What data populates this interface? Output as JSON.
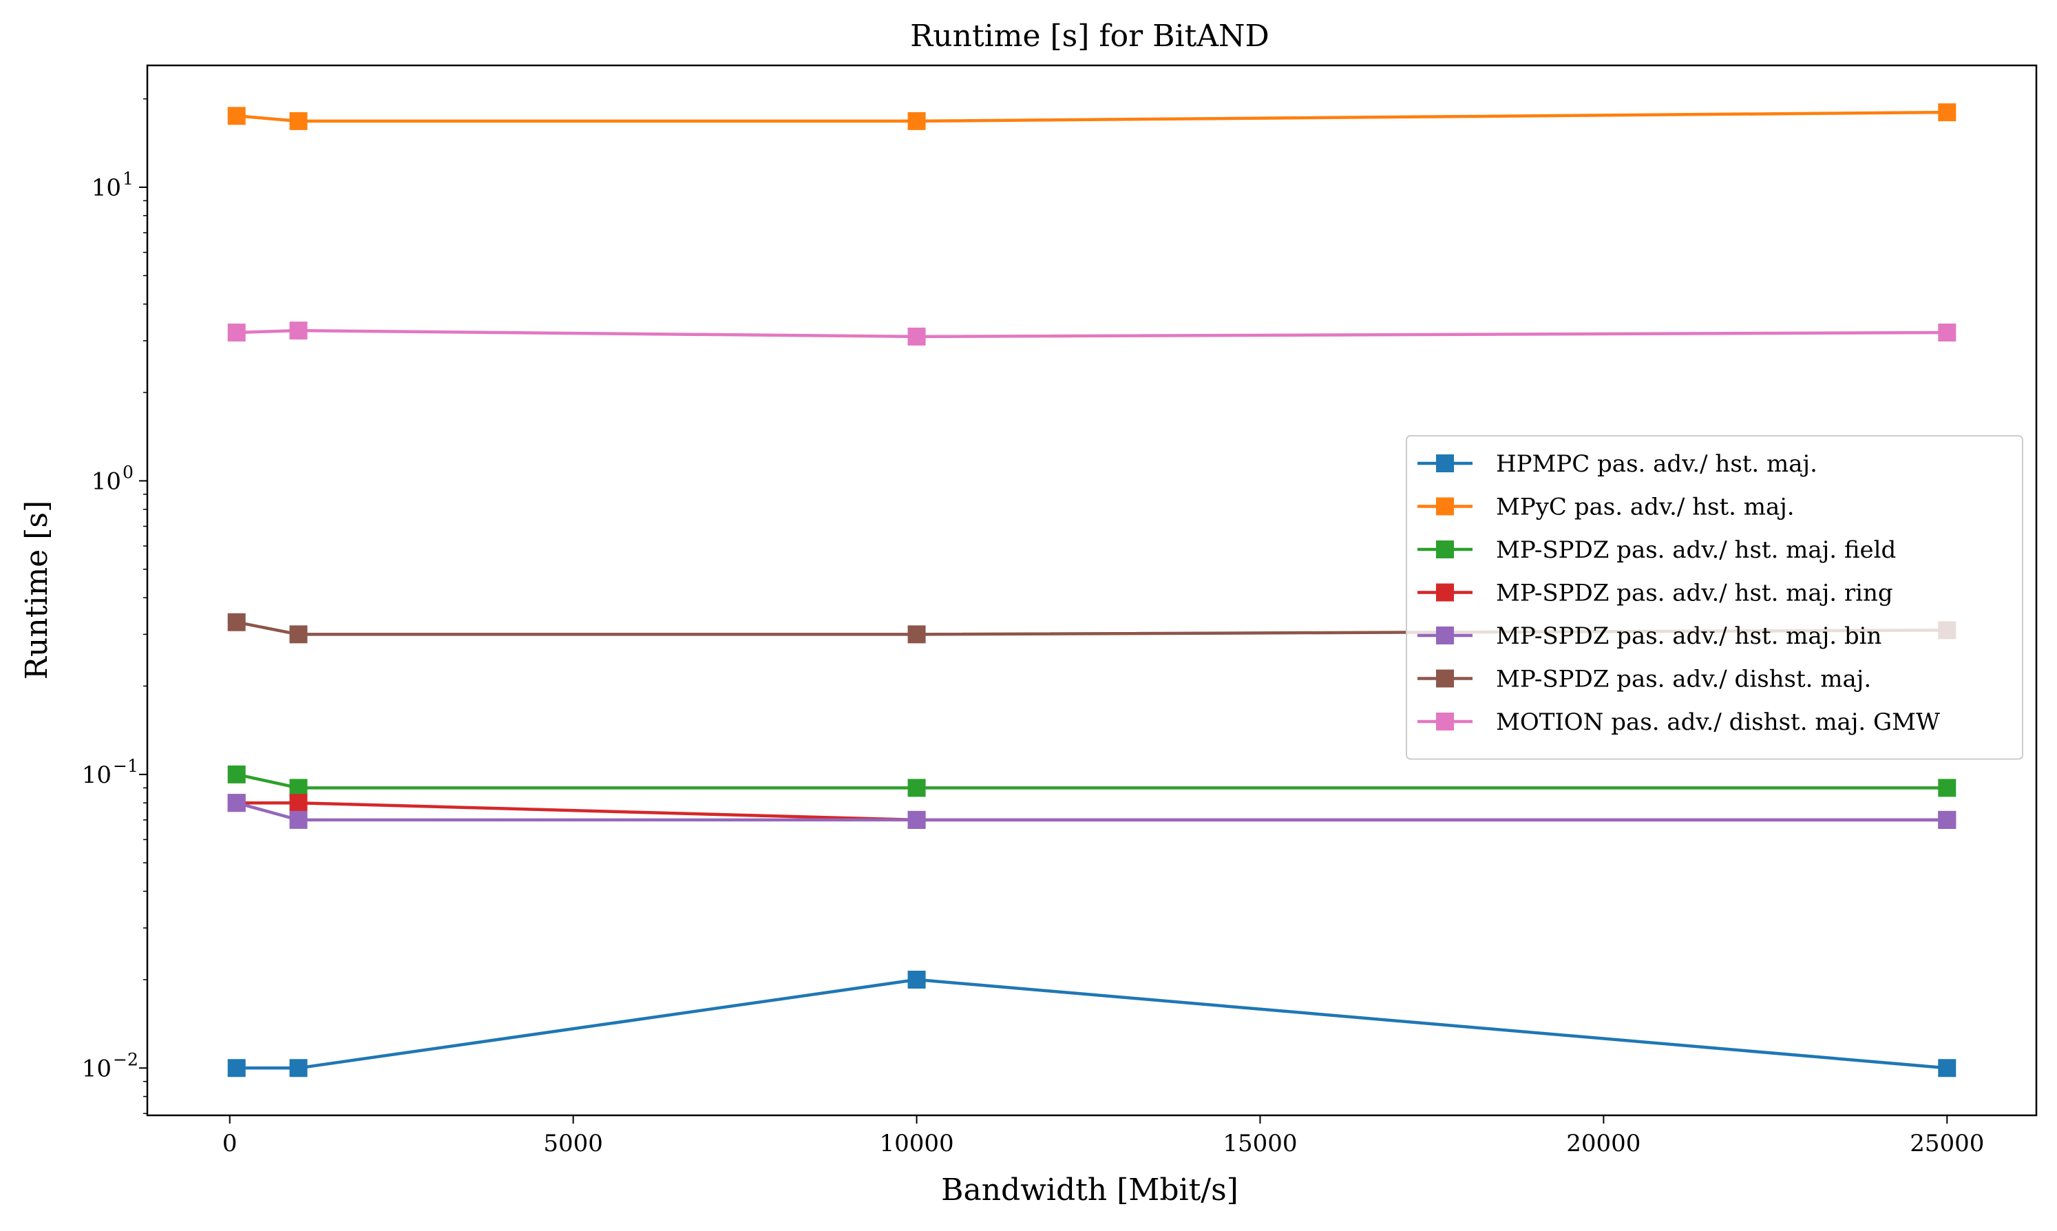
{
  "chart_data": {
    "type": "line",
    "title": "Runtime [s] for BitAND",
    "xlabel": "Bandwidth [Mbit/s]",
    "ylabel": "Runtime [s]",
    "xlim": [
      -1200,
      26300
    ],
    "ylim": [
      0.0069,
      26
    ],
    "yscale": "log",
    "xticks": [
      0,
      5000,
      10000,
      15000,
      20000,
      25000
    ],
    "xtick_labels": [
      "0",
      "5000",
      "10000",
      "15000",
      "20000",
      "25000"
    ],
    "yticks": [
      0.01,
      0.1,
      1,
      10
    ],
    "ytick_base": "10",
    "ytick_exponents": [
      "−2",
      "−1",
      "0",
      "1"
    ],
    "grid": false,
    "legend_position": "center-right",
    "marker": "square",
    "x": [
      100,
      1000,
      10000,
      25000
    ],
    "series": [
      {
        "name": "HPMPC pas. adv./ hst. maj.",
        "color": "#1f77b4",
        "values": [
          0.01,
          0.01,
          0.02,
          0.01
        ]
      },
      {
        "name": "MPyC pas. adv./ hst. maj.",
        "color": "#ff7f0e",
        "values": [
          17.5,
          16.8,
          16.8,
          18.0
        ]
      },
      {
        "name": "MP-SPDZ pas. adv./ hst. maj. field",
        "color": "#2ca02c",
        "values": [
          0.1,
          0.09,
          0.09,
          0.09
        ]
      },
      {
        "name": "MP-SPDZ pas. adv./ hst. maj. ring",
        "color": "#d62728",
        "values": [
          0.08,
          0.08,
          0.07,
          0.07
        ]
      },
      {
        "name": "MP-SPDZ pas. adv./ hst. maj. bin",
        "color": "#9467bd",
        "values": [
          0.08,
          0.07,
          0.07,
          0.07
        ]
      },
      {
        "name": "MP-SPDZ pas. adv./ dishst. maj.",
        "color": "#8c564b",
        "values": [
          0.33,
          0.3,
          0.3,
          0.31
        ]
      },
      {
        "name": "MOTION pas. adv./ dishst. maj. GMW",
        "color": "#e377c2",
        "values": [
          3.2,
          3.25,
          3.1,
          3.2
        ]
      }
    ]
  }
}
